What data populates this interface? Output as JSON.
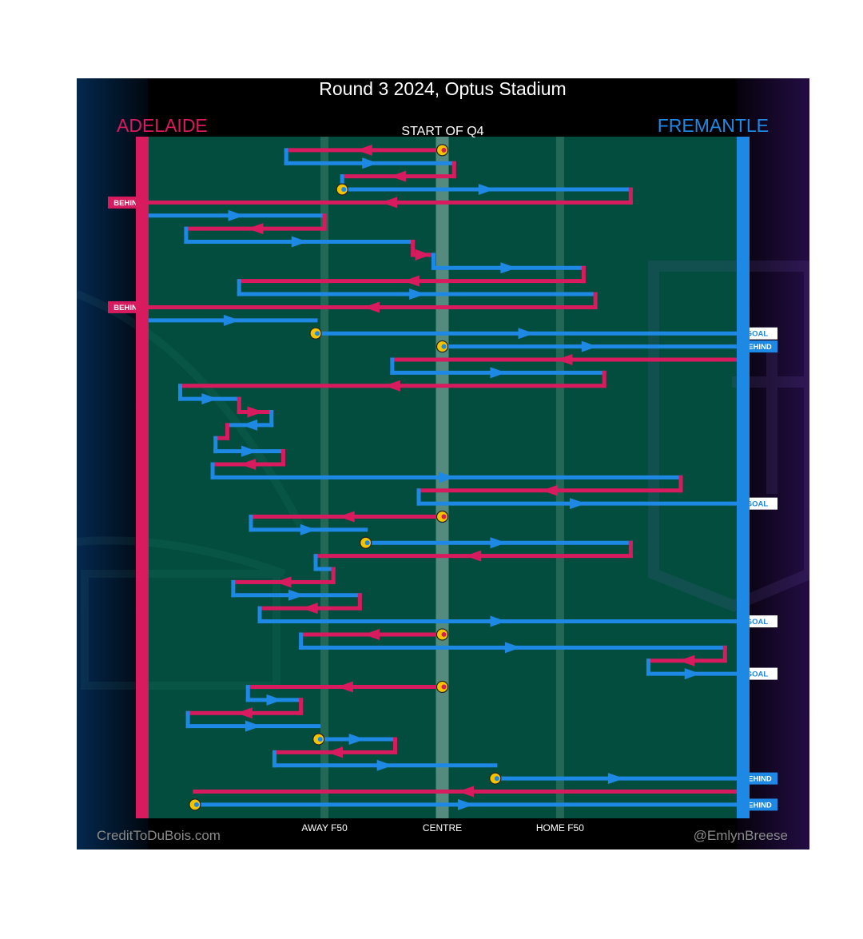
{
  "title": "Round 3 2024, Optus Stadium",
  "subtitle": "START OF Q4",
  "teams": {
    "left": {
      "name": "ADELAIDE",
      "color": "#d81b5e"
    },
    "right": {
      "name": "FREMANTLE",
      "color": "#1e88e5"
    }
  },
  "footer": {
    "left": "CreditToDuBois.com",
    "right": "@EmlynBreese"
  },
  "colors": {
    "field": "#024d3d",
    "marker": "#f5c400",
    "adelaide": "#d81b5e",
    "fremantle": "#1e88e5"
  },
  "chart_data": {
    "type": "line",
    "x_axis": {
      "ticks": [
        {
          "value": 0.3,
          "label": "AWAY F50"
        },
        {
          "value": 0.5,
          "label": "CENTRE"
        },
        {
          "value": 0.7,
          "label": "HOME F50"
        }
      ]
    },
    "y_axis": {
      "direction": "down",
      "unit": "chain step"
    },
    "series": [
      {
        "name": "ADELAIDE",
        "color": "#d81b5e"
      },
      {
        "name": "FREMANTLE",
        "color": "#1e88e5"
      }
    ],
    "chains": [
      [
        {
          "team": "A",
          "x1": 0.5,
          "x2": 0.235,
          "y": 1,
          "start_marker": true
        },
        {
          "team": "F",
          "x1": 0.235,
          "x2": 0.52,
          "y": 2
        },
        {
          "team": "A",
          "x1": 0.52,
          "x2": 0.33,
          "y": 3
        },
        {
          "team": "F",
          "x1": 0.33,
          "x2": 0.82,
          "y": 4,
          "start_marker": true
        },
        {
          "team": "A",
          "x1": 0.82,
          "x2": 0.0,
          "y": 5,
          "result": "BEHIND",
          "result_side": "left"
        }
      ],
      [
        {
          "team": "F",
          "x1": 0.0,
          "x2": 0.3,
          "y": 6
        },
        {
          "team": "A",
          "x1": 0.3,
          "x2": 0.065,
          "y": 7
        },
        {
          "team": "F",
          "x1": 0.065,
          "x2": 0.45,
          "y": 8
        },
        {
          "team": "A",
          "x1": 0.45,
          "x2": 0.485,
          "y": 9
        },
        {
          "team": "F",
          "x1": 0.485,
          "x2": 0.74,
          "y": 10
        },
        {
          "team": "A",
          "x1": 0.74,
          "x2": 0.155,
          "y": 11
        },
        {
          "team": "F",
          "x1": 0.155,
          "x2": 0.76,
          "y": 12
        },
        {
          "team": "A",
          "x1": 0.76,
          "x2": 0.0,
          "y": 13,
          "result": "BEHIND",
          "result_side": "left"
        }
      ],
      [
        {
          "team": "F",
          "x1": 0.0,
          "x2": 0.285,
          "y": 14
        }
      ],
      [
        {
          "team": "F",
          "x1": 0.285,
          "x2": 1.0,
          "y": 15,
          "start_marker": true,
          "result": "GOAL",
          "result_side": "right"
        }
      ],
      [
        {
          "team": "F",
          "x1": 0.5,
          "x2": 1.0,
          "y": 16,
          "start_marker": true,
          "result": "BEHIND",
          "result_side": "right"
        }
      ],
      [
        {
          "team": "A",
          "x1": 1.0,
          "x2": 0.415,
          "y": 17
        },
        {
          "team": "F",
          "x1": 0.415,
          "x2": 0.775,
          "y": 18
        },
        {
          "team": "A",
          "x1": 0.775,
          "x2": 0.055,
          "y": 19
        },
        {
          "team": "F",
          "x1": 0.055,
          "x2": 0.155,
          "y": 20
        },
        {
          "team": "A",
          "x1": 0.155,
          "x2": 0.21,
          "y": 21
        },
        {
          "team": "F",
          "x1": 0.21,
          "x2": 0.135,
          "y": 22
        },
        {
          "team": "A",
          "x1": 0.135,
          "x2": 0.115,
          "y": 23
        },
        {
          "team": "F",
          "x1": 0.115,
          "x2": 0.23,
          "y": 24
        },
        {
          "team": "A",
          "x1": 0.23,
          "x2": 0.11,
          "y": 25
        },
        {
          "team": "F",
          "x1": 0.11,
          "x2": 0.905,
          "y": 26
        },
        {
          "team": "A",
          "x1": 0.905,
          "x2": 0.46,
          "y": 27
        },
        {
          "team": "F",
          "x1": 0.46,
          "x2": 1.0,
          "y": 28,
          "result": "GOAL",
          "result_side": "right"
        }
      ],
      [
        {
          "team": "A",
          "x1": 0.5,
          "x2": 0.175,
          "y": 29,
          "start_marker": true
        },
        {
          "team": "F",
          "x1": 0.175,
          "x2": 0.37,
          "y": 30
        }
      ],
      [
        {
          "team": "F",
          "x1": 0.37,
          "x2": 0.82,
          "y": 31,
          "start_marker": true
        },
        {
          "team": "A",
          "x1": 0.82,
          "x2": 0.285,
          "y": 32
        },
        {
          "team": "F",
          "x1": 0.285,
          "x2": 0.315,
          "y": 33
        },
        {
          "team": "A",
          "x1": 0.315,
          "x2": 0.145,
          "y": 34
        },
        {
          "team": "F",
          "x1": 0.145,
          "x2": 0.36,
          "y": 35
        },
        {
          "team": "A",
          "x1": 0.36,
          "x2": 0.19,
          "y": 36
        },
        {
          "team": "F",
          "x1": 0.19,
          "x2": 1.0,
          "y": 37,
          "result": "GOAL",
          "result_side": "right"
        }
      ],
      [
        {
          "team": "A",
          "x1": 0.5,
          "x2": 0.26,
          "y": 38,
          "start_marker": true
        },
        {
          "team": "F",
          "x1": 0.26,
          "x2": 0.98,
          "y": 39
        },
        {
          "team": "A",
          "x1": 0.98,
          "x2": 0.85,
          "y": 40
        },
        {
          "team": "F",
          "x1": 0.85,
          "x2": 1.0,
          "y": 41,
          "result": "GOAL",
          "result_side": "right"
        }
      ],
      [
        {
          "team": "A",
          "x1": 0.5,
          "x2": 0.17,
          "y": 42,
          "start_marker": true
        },
        {
          "team": "F",
          "x1": 0.17,
          "x2": 0.26,
          "y": 43
        },
        {
          "team": "A",
          "x1": 0.26,
          "x2": 0.068,
          "y": 44
        },
        {
          "team": "F",
          "x1": 0.068,
          "x2": 0.29,
          "y": 45
        }
      ],
      [
        {
          "team": "F",
          "x1": 0.29,
          "x2": 0.42,
          "y": 46,
          "start_marker": true
        },
        {
          "team": "A",
          "x1": 0.42,
          "x2": 0.215,
          "y": 47
        },
        {
          "team": "F",
          "x1": 0.215,
          "x2": 0.59,
          "y": 48
        }
      ],
      [
        {
          "team": "F",
          "x1": 0.59,
          "x2": 1.0,
          "y": 49,
          "start_marker": true,
          "result": "BEHIND",
          "result_side": "right"
        }
      ],
      [
        {
          "team": "A",
          "x1": 1.0,
          "x2": 0.08,
          "y": 50
        }
      ],
      [
        {
          "team": "F",
          "x1": 0.08,
          "x2": 1.0,
          "y": 51,
          "start_marker": true,
          "result": "BEHIND",
          "result_side": "right"
        }
      ]
    ]
  }
}
